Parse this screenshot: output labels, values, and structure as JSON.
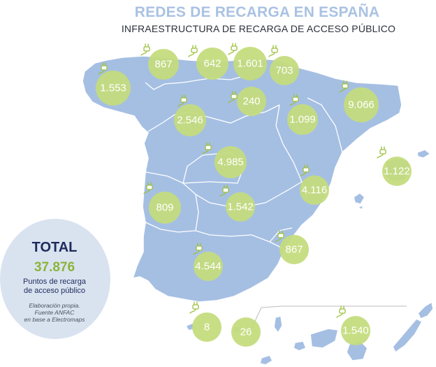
{
  "title": "REDES DE RECARGA EN ESPAÑA",
  "subtitle": "INFRAESTRUCTURA DE RECARGA DE ACCESO PÚBLICO",
  "total": {
    "label": "TOTAL",
    "value": "37.876",
    "caption": "Puntos de recarga\nde acceso público",
    "source_note": "Elaboración propia.\nFuente ANFAC\nen base a Electromaps"
  },
  "regions": {
    "galicia": "1.553",
    "asturias": "867",
    "cantabria": "642",
    "pais_vasco": "1.601",
    "navarra": "703",
    "la_rioja": "240",
    "castilla_leon": "2.546",
    "aragon": "1.099",
    "cataluna": "9.066",
    "baleares": "1.122",
    "madrid": "4.985",
    "comunidad_valenciana": "4.116",
    "extremadura": "809",
    "castilla_la_mancha": "1.542",
    "murcia": "867",
    "andalucia": "4.544",
    "ceuta": "8",
    "melilla": "26",
    "canarias": "1.540"
  },
  "colors": {
    "title": "#a9c2e2",
    "land": "#a5bfe3",
    "bubble": "#c4dc7c",
    "total_value": "#8cb43a",
    "total_label": "#1f2b5c",
    "total_circle": "#d9e3f0"
  }
}
